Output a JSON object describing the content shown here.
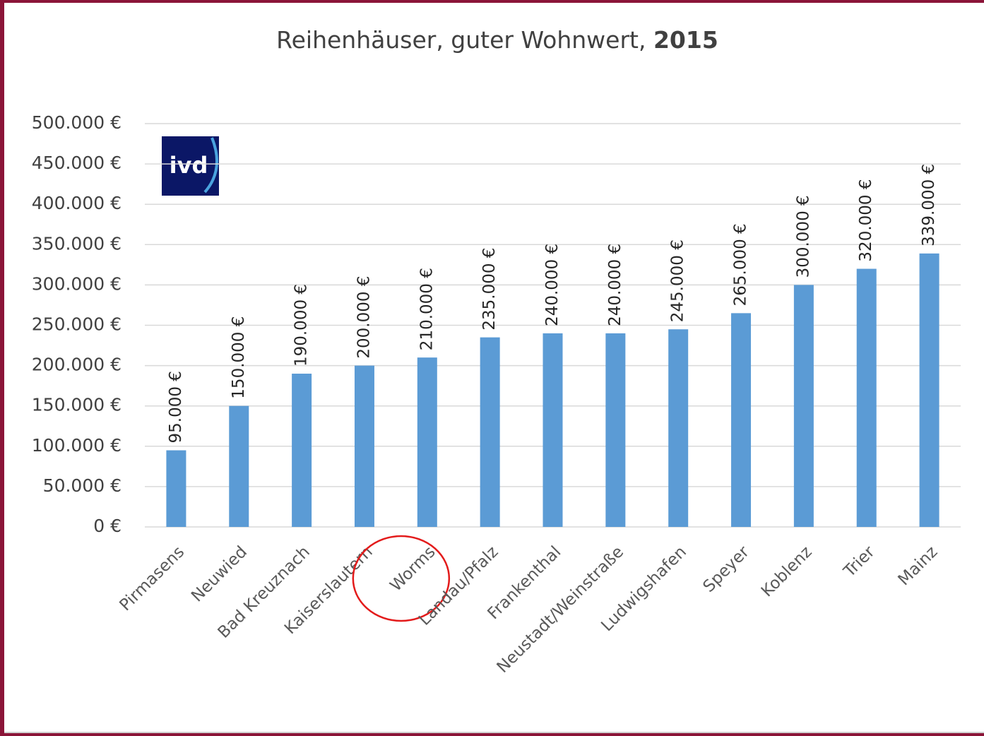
{
  "chart_data": {
    "type": "bar",
    "title": "Reihenhäuser, guter Wohnwert,",
    "title_emphasis": "2015",
    "logo": "ivd",
    "categories": [
      "Pirmasens",
      "Neuwied",
      "Bad Kreuznach",
      "Kaiserslautern",
      "Worms",
      "Landau/Pfalz",
      "Frankenthal",
      "Neustadt/Weinstraße",
      "Ludwigshafen",
      "Speyer",
      "Koblenz",
      "Trier",
      "Mainz"
    ],
    "values": [
      95000,
      150000,
      190000,
      200000,
      210000,
      235000,
      240000,
      240000,
      245000,
      265000,
      300000,
      320000,
      339000
    ],
    "value_labels": [
      "95.000 €",
      "150.000 €",
      "190.000 €",
      "200.000 €",
      "210.000 €",
      "235.000 €",
      "240.000 €",
      "240.000 €",
      "245.000 €",
      "265.000 €",
      "300.000 €",
      "320.000 €",
      "339.000 €"
    ],
    "color": "#5b9bd5",
    "ylim": [
      0,
      500000
    ],
    "yticks": [
      {
        "value": 0,
        "label": "0 €"
      },
      {
        "value": 50000,
        "label": "50.000 €"
      },
      {
        "value": 100000,
        "label": "100.000 €"
      },
      {
        "value": 150000,
        "label": "150.000 €"
      },
      {
        "value": 200000,
        "label": "200.000 €"
      },
      {
        "value": 250000,
        "label": "250.000 €"
      },
      {
        "value": 300000,
        "label": "300.000 €"
      },
      {
        "value": 350000,
        "label": "350.000 €"
      },
      {
        "value": 400000,
        "label": "400.000 €"
      },
      {
        "value": 450000,
        "label": "450.000 €"
      },
      {
        "value": 500000,
        "label": "500.000 €"
      }
    ],
    "grid": true,
    "highlight": "Worms"
  }
}
